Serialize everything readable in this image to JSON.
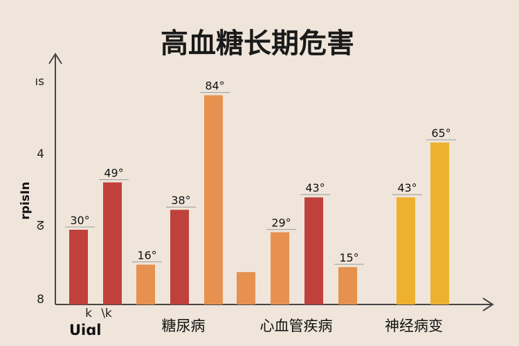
{
  "chart_data": {
    "type": "bar",
    "title": "高血糖长期危害",
    "ylabel": "rpisIn",
    "y_ticks": [
      "ıs",
      "4",
      "ᘔ",
      "8"
    ],
    "x_small_labels": [
      "k",
      "\\k"
    ],
    "x_corner_label": "Uiɑl",
    "groups": [
      {
        "label": "",
        "bars": [
          {
            "label": "30°",
            "value": 30,
            "color": "#c0413b"
          },
          {
            "label": "49°",
            "value": 49,
            "color": "#c0413b"
          }
        ]
      },
      {
        "label": "糖尿病",
        "bars": [
          {
            "label": "16°",
            "value": 16,
            "color": "#e6914f"
          },
          {
            "label": "38°",
            "value": 38,
            "color": "#c0413b"
          },
          {
            "label": "84°",
            "value": 84,
            "color": "#e6914f"
          }
        ]
      },
      {
        "label": "心血管疾病",
        "bars": [
          {
            "label": "",
            "value": 13,
            "color": "#e6914f"
          },
          {
            "label": "29°",
            "value": 29,
            "color": "#e6914f"
          },
          {
            "label": "43°",
            "value": 43,
            "color": "#c0413b"
          },
          {
            "label": "15°",
            "value": 15,
            "color": "#e6914f"
          }
        ]
      },
      {
        "label": "神经病变",
        "bars": [
          {
            "label": "43°",
            "value": 43,
            "color": "#eeb02f"
          },
          {
            "label": "65°",
            "value": 65,
            "color": "#eeb02f"
          }
        ]
      }
    ],
    "colors": {
      "axis": "#444444",
      "red": "#c0413b",
      "orange": "#e6914f",
      "gold": "#eeb02f"
    }
  }
}
